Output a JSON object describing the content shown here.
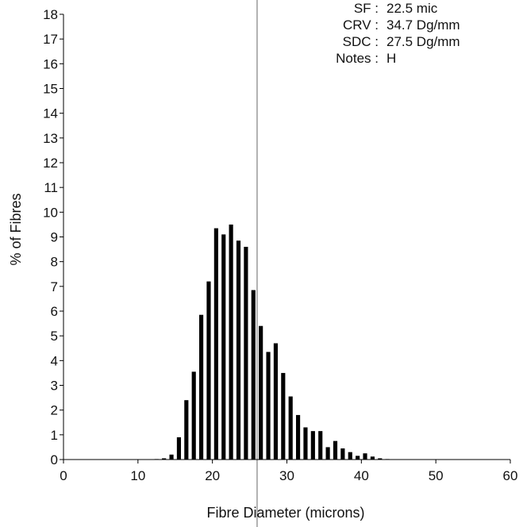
{
  "chart_data": {
    "type": "bar",
    "xlabel": "Fibre Diameter (microns)",
    "ylabel": "% of Fibres",
    "xlim": [
      0,
      60
    ],
    "ylim": [
      0,
      18
    ],
    "x_ticks": [
      "0",
      "10",
      "20",
      "30",
      "40",
      "50",
      "60"
    ],
    "y_ticks": [
      "0",
      "1",
      "2",
      "3",
      "4",
      "5",
      "6",
      "7",
      "8",
      "9",
      "10",
      "11",
      "12",
      "13",
      "14",
      "15",
      "16",
      "17",
      "18"
    ],
    "x": [
      12,
      13,
      14,
      15,
      16,
      17,
      18,
      19,
      20,
      21,
      22,
      23,
      24,
      25,
      26,
      27,
      28,
      29,
      30,
      31,
      32,
      33,
      34,
      35,
      36,
      37,
      38,
      39,
      40,
      41,
      42,
      43
    ],
    "values": [
      0.02,
      0.05,
      0.2,
      0.9,
      2.4,
      3.55,
      5.85,
      7.2,
      9.35,
      9.1,
      9.5,
      8.85,
      8.6,
      6.85,
      5.4,
      4.35,
      4.7,
      3.5,
      2.55,
      1.8,
      1.3,
      1.15,
      1.15,
      0.5,
      0.75,
      0.45,
      0.3,
      0.15,
      0.25,
      0.12,
      0.05,
      0.02
    ],
    "reference_line_x": 26,
    "grid": false,
    "stats": {
      "labels": [
        "SF :",
        "CRV :",
        "SDC :",
        "Notes :"
      ],
      "values": [
        "22.5 mic",
        "34.7 Dg/mm",
        "27.5 Dg/mm",
        "H"
      ]
    }
  },
  "colors": {
    "bars": "#000000",
    "axis": "#000000",
    "reference_line": "#666666",
    "background": "#ffffff"
  }
}
